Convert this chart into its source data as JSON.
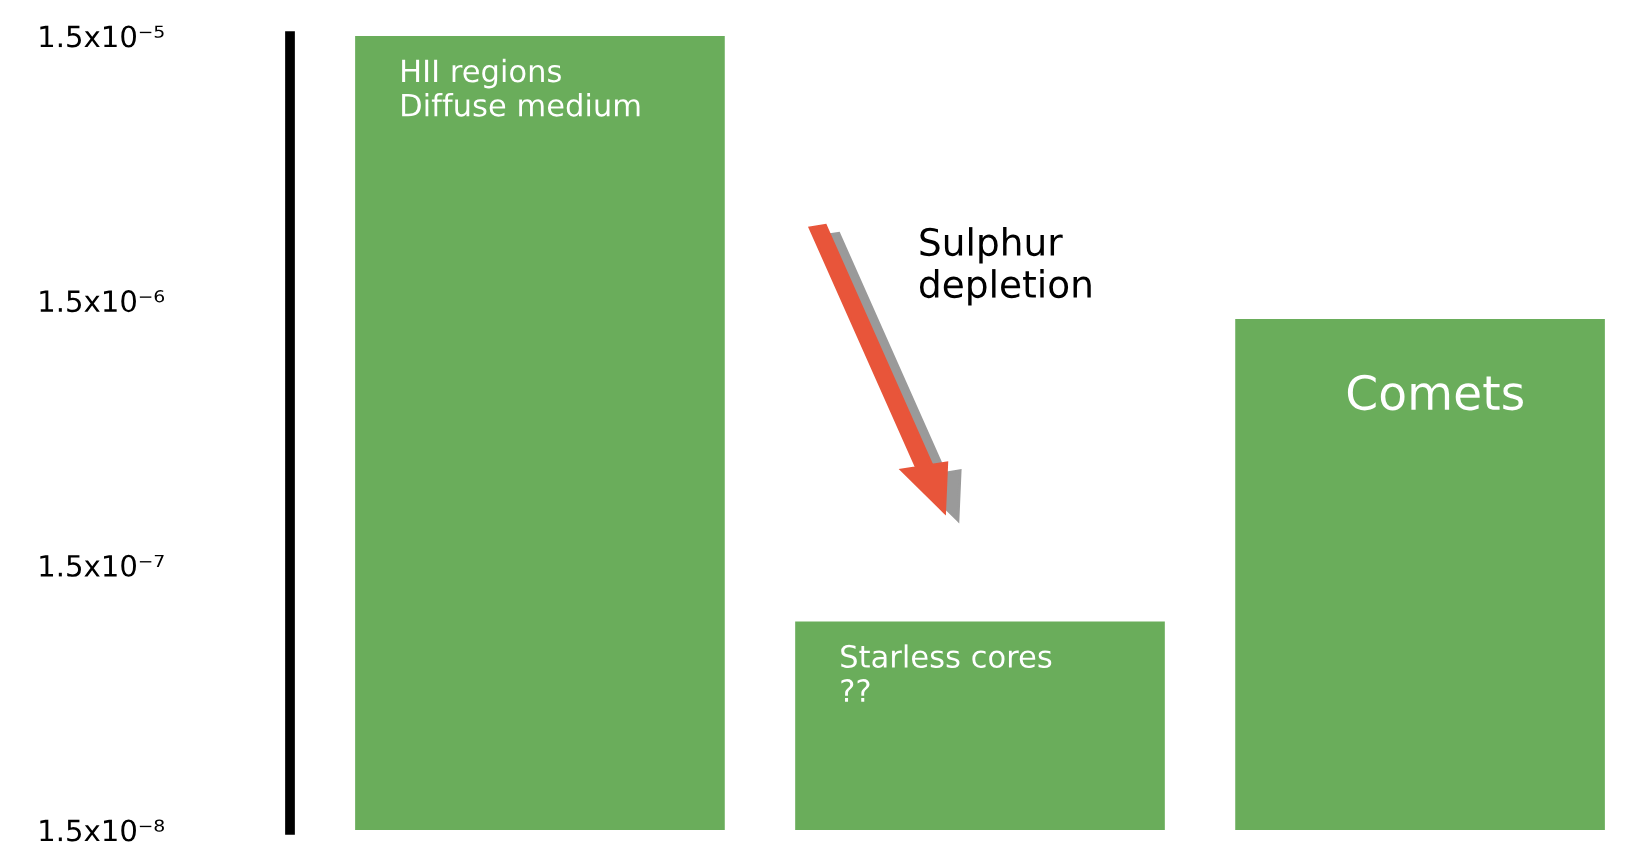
{
  "chart_data": {
    "type": "bar",
    "log": "y",
    "categories": [
      null,
      null,
      null
    ],
    "values": [
      1.5e-05,
      9.2e-08,
      1.28e-06
    ],
    "color": "#6aad5b",
    "ylim": [
      1.5e-08,
      1.5e-05
    ],
    "yticks": [
      {
        "value": 1.5e-08,
        "label": "1.5x10⁻⁸"
      },
      {
        "value": 1.5e-07,
        "label": "1.5x10⁻⁷"
      },
      {
        "value": 1.5e-06,
        "label": "1.5x10⁻⁶"
      },
      {
        "value": 1.5e-05,
        "label": "1.5x10⁻⁵"
      }
    ],
    "grid": false,
    "annotations": [
      "HII regions\nDiffuse medium",
      "Starless cores\n??",
      "Comets",
      "Sulphur\ndepletion"
    ]
  }
}
